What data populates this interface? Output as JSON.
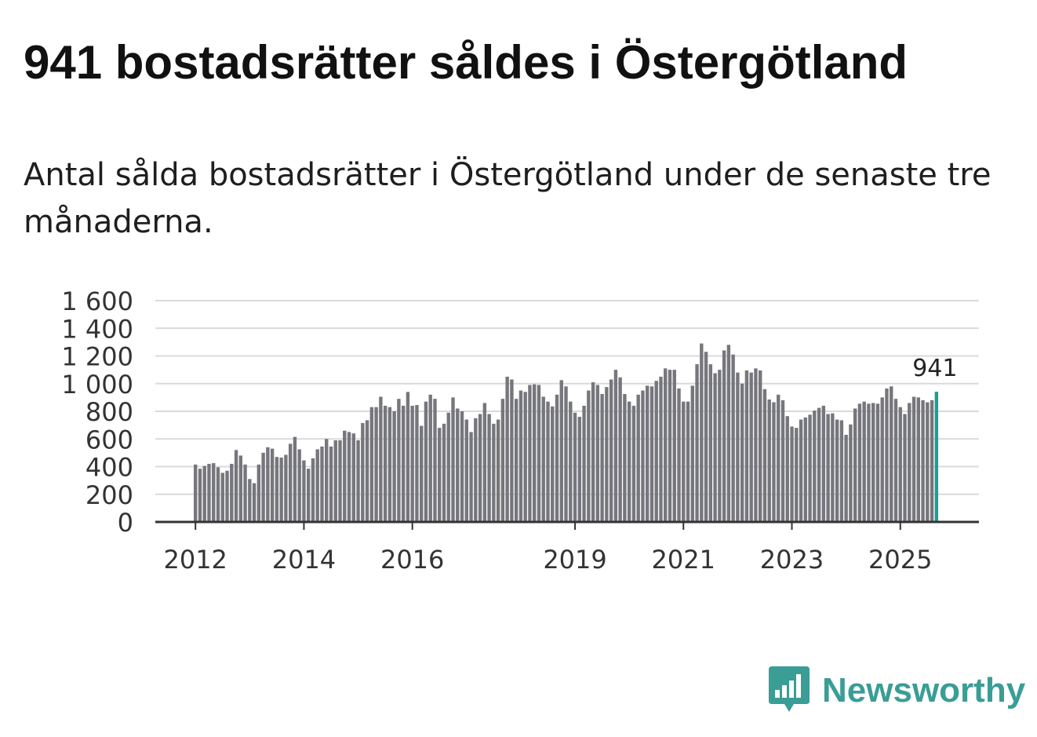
{
  "header": {
    "title": "941 bostadsrätter såldes i Östergötland",
    "subtitle": "Antal sålda bostadsrätter i Östergötland under de senaste tre månaderna."
  },
  "brand": {
    "name": "Newsworthy",
    "logo_icon": "bar-chart-speech-bubble-icon",
    "color": "#3a9d96"
  },
  "colors": {
    "bar": "#76767d",
    "highlight": "#1a9e96",
    "grid": "#dadada",
    "axis": "#333333"
  },
  "chart_data": {
    "type": "bar",
    "title": "Antal sålda bostadsrätter i Östergötland",
    "xlabel": "",
    "ylabel": "",
    "ylim": [
      0,
      1600
    ],
    "yticks": [
      0,
      200,
      400,
      600,
      800,
      1000,
      1200,
      1400,
      1600
    ],
    "ytick_labels": [
      "0",
      "200",
      "400",
      "600",
      "800",
      "1 000",
      "1 200",
      "1 400",
      "1 600"
    ],
    "xticks": [
      {
        "label": "2012",
        "index": 0
      },
      {
        "label": "2014",
        "index": 24
      },
      {
        "label": "2016",
        "index": 48
      },
      {
        "label": "2019",
        "index": 84
      },
      {
        "label": "2021",
        "index": 108
      },
      {
        "label": "2023",
        "index": 132
      },
      {
        "label": "2025",
        "index": 156
      }
    ],
    "grid": true,
    "start": "2012-01",
    "end": "2025-09",
    "frequency": "monthly",
    "highlight_label": "941",
    "highlight_index": 164,
    "values": [
      415,
      385,
      405,
      420,
      425,
      395,
      355,
      370,
      420,
      520,
      480,
      415,
      310,
      280,
      415,
      500,
      540,
      530,
      470,
      465,
      485,
      565,
      615,
      525,
      445,
      385,
      460,
      525,
      545,
      600,
      545,
      590,
      590,
      660,
      650,
      640,
      590,
      715,
      735,
      830,
      830,
      905,
      840,
      830,
      800,
      890,
      840,
      940,
      840,
      845,
      695,
      870,
      920,
      890,
      680,
      710,
      790,
      900,
      820,
      800,
      740,
      650,
      750,
      780,
      860,
      780,
      710,
      740,
      890,
      1050,
      1030,
      890,
      950,
      940,
      990,
      995,
      990,
      905,
      870,
      835,
      920,
      1025,
      980,
      870,
      790,
      760,
      840,
      950,
      1010,
      990,
      925,
      975,
      1030,
      1100,
      1045,
      925,
      870,
      840,
      920,
      950,
      985,
      980,
      1020,
      1050,
      1110,
      1100,
      1100,
      965,
      870,
      870,
      985,
      1140,
      1290,
      1230,
      1140,
      1075,
      1100,
      1240,
      1280,
      1210,
      1080,
      1000,
      1095,
      1080,
      1110,
      1095,
      960,
      885,
      865,
      920,
      880,
      765,
      690,
      680,
      740,
      755,
      775,
      805,
      825,
      840,
      780,
      785,
      740,
      735,
      630,
      705,
      820,
      855,
      870,
      855,
      860,
      855,
      900,
      965,
      980,
      890,
      830,
      780,
      860,
      905,
      900,
      880,
      865,
      880,
      941
    ]
  }
}
